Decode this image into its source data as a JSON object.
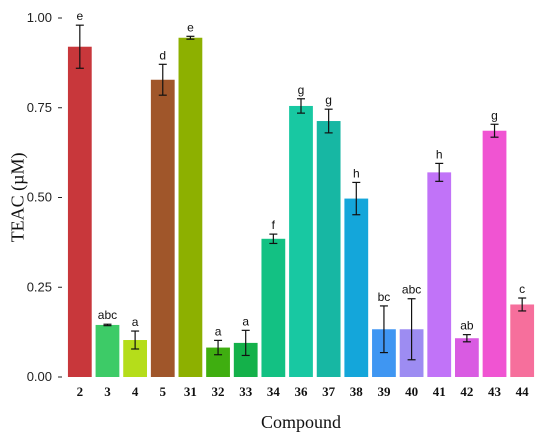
{
  "chart_data": {
    "type": "bar",
    "xlabel": "Compound",
    "ylabel": "TEAC (µM)",
    "ylim": [
      0,
      1.0
    ],
    "yticks": [
      "0.00",
      "0.25",
      "0.50",
      "0.75",
      "1.00"
    ],
    "categories": [
      "2",
      "3",
      "4",
      "5",
      "31",
      "32",
      "33",
      "34",
      "36",
      "37",
      "38",
      "39",
      "40",
      "41",
      "42",
      "43",
      "44"
    ],
    "values": [
      0.92,
      0.145,
      0.103,
      0.828,
      0.945,
      0.082,
      0.095,
      0.385,
      0.755,
      0.713,
      0.497,
      0.133,
      0.133,
      0.57,
      0.108,
      0.686,
      0.202
    ],
    "errors": [
      0.06,
      0.002,
      0.025,
      0.043,
      0.004,
      0.02,
      0.035,
      0.013,
      0.02,
      0.033,
      0.045,
      0.065,
      0.085,
      0.025,
      0.01,
      0.018,
      0.018
    ],
    "labels": [
      "e",
      "abc",
      "a",
      "d",
      "e",
      "a",
      "a",
      "f",
      "g",
      "g",
      "h",
      "bc",
      "abc",
      "h",
      "ab",
      "g",
      "c"
    ],
    "colors": [
      "#c8373b",
      "#3dcb67",
      "#b5dd1a",
      "#a0562a",
      "#8db000",
      "#3fae10",
      "#14b14a",
      "#13c183",
      "#18c8a2",
      "#17b7a3",
      "#14a6da",
      "#3f96f2",
      "#9d8cf2",
      "#c173f8",
      "#d95be2",
      "#f054d2",
      "#f66f9c"
    ],
    "grid": false
  }
}
